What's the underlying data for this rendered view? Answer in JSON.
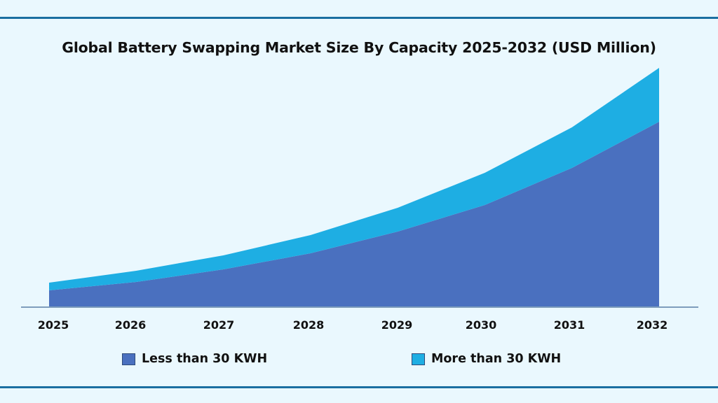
{
  "chart_data": {
    "type": "area",
    "stacked": true,
    "title": "Global Battery Swapping Market Size By Capacity 2025-2032 (USD Million)",
    "xlabel": "",
    "ylabel": "",
    "categories": [
      "2025",
      "2026",
      "2027",
      "2028",
      "2029",
      "2030",
      "2031",
      "2032"
    ],
    "series": [
      {
        "name": "Less than 30 KWH",
        "color": "#4a70bf",
        "values": [
          23,
          35,
          53,
          76,
          107,
          145,
          198,
          264
        ]
      },
      {
        "name": "More than 30 KWH",
        "color": "#1eaee3",
        "values": [
          11,
          16,
          20,
          26,
          34,
          46,
          58,
          77
        ]
      }
    ],
    "ylim": [
      0,
      341
    ],
    "y_axis_shown": false,
    "grid": false,
    "legend_position": "bottom"
  },
  "colors": {
    "background": "#eaf8fe",
    "rule": "#1b6fa1",
    "axis": "#5b7fa6"
  }
}
